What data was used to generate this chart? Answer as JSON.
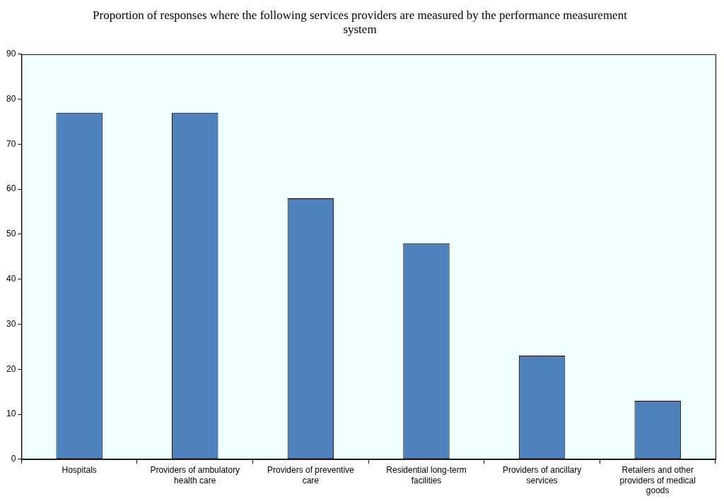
{
  "chart_data": {
    "type": "bar",
    "title": "Proportion of responses where the following services providers are measured by the performance measurement system",
    "categories": [
      "Hospitals",
      "Providers of ambulatory health care",
      "Providers of preventive care",
      "Residential long-term facilities",
      "Providers of ancillary services",
      "Retailers and other providers of medical goods"
    ],
    "values": [
      77,
      77,
      58,
      48,
      23,
      13
    ],
    "color": "#4f81bd",
    "ylim": [
      0,
      90
    ],
    "yticks": [
      0,
      10,
      20,
      30,
      40,
      50,
      60,
      70,
      80,
      90
    ],
    "grid": false,
    "legend": false
  }
}
